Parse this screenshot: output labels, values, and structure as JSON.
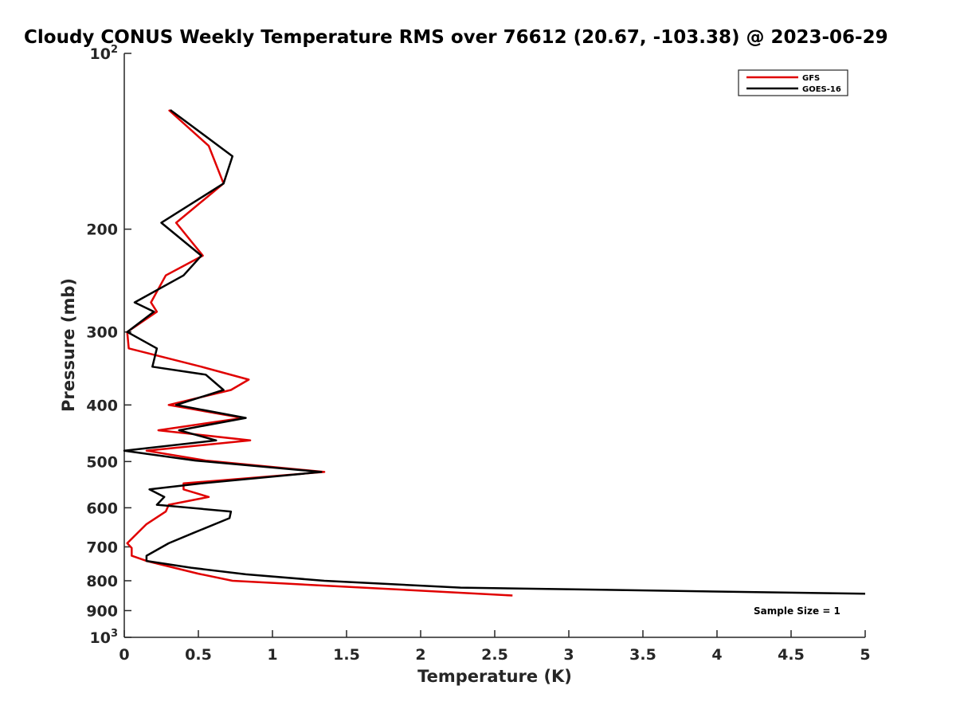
{
  "chart_data": {
    "type": "line",
    "title": "Cloudy CONUS Weekly Temperature RMS over 76612 (20.67, -103.38) @ 2023-06-29",
    "xlabel": "Temperature (K)",
    "ylabel": "Pressure (mb)",
    "xlim": [
      0,
      5
    ],
    "ylim": [
      100,
      1000
    ],
    "y_scale": "log",
    "y_reversed": true,
    "x_ticks": [
      "0",
      "0.5",
      "1",
      "1.5",
      "2",
      "2.5",
      "3",
      "3.5",
      "4",
      "4.5",
      "5"
    ],
    "y_ticks": [
      {
        "value": 100,
        "base": "10",
        "exp": "2"
      },
      {
        "value": 200,
        "label": "200"
      },
      {
        "value": 300,
        "label": "300"
      },
      {
        "value": 400,
        "label": "400"
      },
      {
        "value": 500,
        "label": "500"
      },
      {
        "value": 600,
        "label": "600"
      },
      {
        "value": 700,
        "label": "700"
      },
      {
        "value": 800,
        "label": "800"
      },
      {
        "value": 900,
        "label": "900"
      },
      {
        "value": 1000,
        "base": "10",
        "exp": "3"
      }
    ],
    "grid": false,
    "legend_position": "top-right",
    "series": [
      {
        "name": "GFS",
        "color": "#e00000",
        "points": [
          [
            0.3,
            125
          ],
          [
            0.57,
            144
          ],
          [
            0.67,
            167
          ],
          [
            0.35,
            195
          ],
          [
            0.53,
            222
          ],
          [
            0.28,
            240
          ],
          [
            0.18,
            267
          ],
          [
            0.22,
            277
          ],
          [
            0.02,
            300
          ],
          [
            0.03,
            320
          ],
          [
            0.52,
            344
          ],
          [
            0.84,
            362
          ],
          [
            0.72,
            377
          ],
          [
            0.3,
            400
          ],
          [
            0.8,
            421
          ],
          [
            0.23,
            442
          ],
          [
            0.85,
            460
          ],
          [
            0.15,
            479
          ],
          [
            0.55,
            498
          ],
          [
            1.35,
            521
          ],
          [
            0.4,
            545
          ],
          [
            0.4,
            558
          ],
          [
            0.57,
            575
          ],
          [
            0.3,
            593
          ],
          [
            0.28,
            609
          ],
          [
            0.15,
            640
          ],
          [
            0.02,
            690
          ],
          [
            0.05,
            703
          ],
          [
            0.05,
            725
          ],
          [
            0.15,
            740
          ],
          [
            0.5,
            778
          ],
          [
            0.73,
            800
          ],
          [
            2.62,
            848
          ]
        ]
      },
      {
        "name": "GOES-16",
        "color": "#000000",
        "points": [
          [
            0.31,
            125
          ],
          [
            0.73,
            150
          ],
          [
            0.67,
            167
          ],
          [
            0.25,
            195
          ],
          [
            0.52,
            222
          ],
          [
            0.4,
            240
          ],
          [
            0.07,
            267
          ],
          [
            0.2,
            277
          ],
          [
            0.02,
            300
          ],
          [
            0.22,
            320
          ],
          [
            0.19,
            344
          ],
          [
            0.55,
            355
          ],
          [
            0.67,
            377
          ],
          [
            0.35,
            400
          ],
          [
            0.82,
            421
          ],
          [
            0.37,
            442
          ],
          [
            0.62,
            460
          ],
          [
            0.0,
            479
          ],
          [
            0.48,
            498
          ],
          [
            1.33,
            521
          ],
          [
            0.52,
            545
          ],
          [
            0.17,
            558
          ],
          [
            0.27,
            575
          ],
          [
            0.22,
            593
          ],
          [
            0.72,
            609
          ],
          [
            0.71,
            625
          ],
          [
            0.47,
            662
          ],
          [
            0.3,
            690
          ],
          [
            0.15,
            725
          ],
          [
            0.15,
            740
          ],
          [
            0.45,
            760
          ],
          [
            0.82,
            780
          ],
          [
            1.35,
            800
          ],
          [
            2.27,
            822
          ],
          [
            5.0,
            842
          ]
        ]
      }
    ],
    "annotations": [
      "Sample Size = 1"
    ]
  }
}
